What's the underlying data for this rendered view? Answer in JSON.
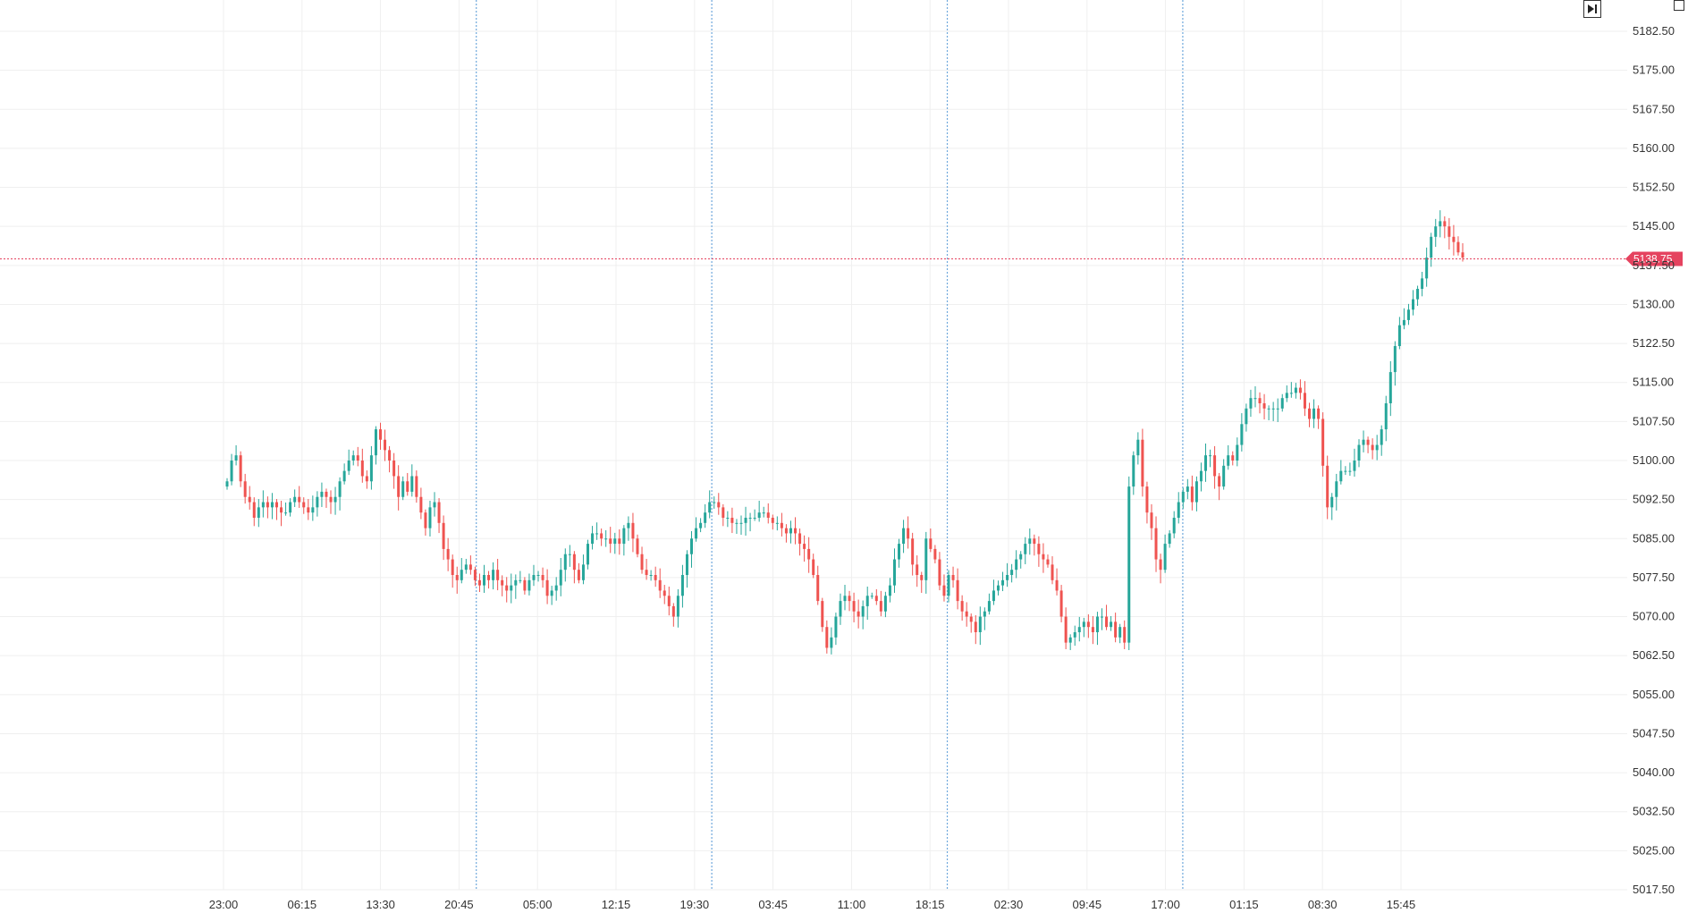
{
  "chart_data": {
    "type": "candlestick",
    "title": "",
    "xlabel": "",
    "ylabel": "",
    "ylim": [
      5017.5,
      5187.5
    ],
    "y_ticks": [
      "5182.50",
      "5175.00",
      "5167.50",
      "5160.00",
      "5152.50",
      "5145.00",
      "5137.50",
      "5130.00",
      "5122.50",
      "5115.00",
      "5107.50",
      "5100.00",
      "5092.50",
      "5085.00",
      "5077.50",
      "5070.00",
      "5062.50",
      "5055.00",
      "5047.50",
      "5040.00",
      "5032.50",
      "5025.00",
      "5017.50"
    ],
    "x_ticks": [
      "23:00",
      "06:15",
      "13:30",
      "20:45",
      "05:00",
      "12:15",
      "19:30",
      "03:45",
      "11:00",
      "18:15",
      "02:30",
      "09:45",
      "17:00",
      "01:15",
      "08:30",
      "15:45"
    ],
    "session_breaks_after_tick": [
      3,
      6,
      9,
      12
    ],
    "last_price": "5138.75",
    "last_price_value": 5138.75,
    "grid": true,
    "series": [
      {
        "values": [
          5096,
          5100,
          5101,
          5096,
          5093,
          5092,
          5089,
          5091,
          5092,
          5091,
          5092,
          5091,
          5090,
          5090,
          5092,
          5093,
          5092,
          5091,
          5090,
          5091,
          5093,
          5094,
          5093,
          5092,
          5093,
          5096,
          5098,
          5100,
          5101,
          5100,
          5097,
          5096,
          5101,
          5106,
          5104,
          5102,
          5100,
          5097,
          5093,
          5096,
          5094,
          5097,
          5093,
          5090,
          5087,
          5091,
          5092,
          5088,
          5083,
          5081,
          5078,
          5077,
          5079,
          5080,
          5079,
          5077,
          5076,
          5078,
          5077,
          5079,
          5077,
          5076,
          5075,
          5076,
          5077,
          5077,
          5075,
          5077,
          5078,
          5078,
          5077,
          5074,
          5075,
          5076,
          5079,
          5082,
          5082,
          5079,
          5077,
          5080,
          5084,
          5086,
          5086,
          5085,
          5085,
          5084,
          5085,
          5084,
          5087,
          5088,
          5085,
          5082,
          5079,
          5078,
          5078,
          5077,
          5075,
          5074,
          5072,
          5070,
          5074,
          5078,
          5082,
          5085,
          5087,
          5088,
          5090,
          5092,
          5092,
          5091,
          5089,
          5089,
          5088,
          5088,
          5088,
          5089,
          5089,
          5089,
          5090,
          5090,
          5089,
          5088,
          5088,
          5087,
          5086,
          5087,
          5086,
          5084,
          5083,
          5081,
          5078,
          5073,
          5068,
          5064,
          5066,
          5070,
          5073,
          5074,
          5073,
          5071,
          5070,
          5072,
          5074,
          5074,
          5073,
          5071,
          5074,
          5076,
          5081,
          5084,
          5087,
          5085,
          5080,
          5078,
          5077,
          5085,
          5083,
          5081,
          5076,
          5074,
          5078,
          5077,
          5073,
          5071,
          5070,
          5069,
          5067,
          5070,
          5071,
          5073,
          5075,
          5076,
          5077,
          5078,
          5079,
          5081,
          5082,
          5084,
          5085,
          5084,
          5082,
          5081,
          5080,
          5077,
          5075,
          5070,
          5065,
          5066,
          5067,
          5068,
          5069,
          5068,
          5067,
          5070,
          5070,
          5068,
          5069,
          5066,
          5068,
          5065,
          5095,
          5101,
          5104,
          5095,
          5090,
          5087,
          5081,
          5079,
          5084,
          5086,
          5089,
          5092,
          5094,
          5095,
          5092,
          5096,
          5098,
          5101,
          5101,
          5097,
          5095,
          5099,
          5101,
          5100,
          5103,
          5107,
          5110,
          5112,
          5112,
          5111,
          5110,
          5110,
          5110,
          5110,
          5112,
          5113,
          5113,
          5114,
          5113,
          5110,
          5108,
          5110,
          5108,
          5099,
          5091,
          5093,
          5096,
          5098,
          5098,
          5098,
          5100,
          5103,
          5104,
          5103,
          5102,
          5103,
          5106,
          5111,
          5117,
          5122,
          5126,
          5127,
          5129,
          5131,
          5133,
          5135,
          5139,
          5143,
          5145,
          5146,
          5145,
          5143,
          5142,
          5140,
          5139
        ]
      }
    ]
  },
  "controls": {
    "goto_latest_icon": "skip-to-end-icon",
    "corner_icon": "settings-square-icon"
  },
  "colors": {
    "up": "#26a69a",
    "down": "#ef5350",
    "session_break": "#6fa8dc",
    "last_price": "#e5435f",
    "grid": "#efefef"
  }
}
